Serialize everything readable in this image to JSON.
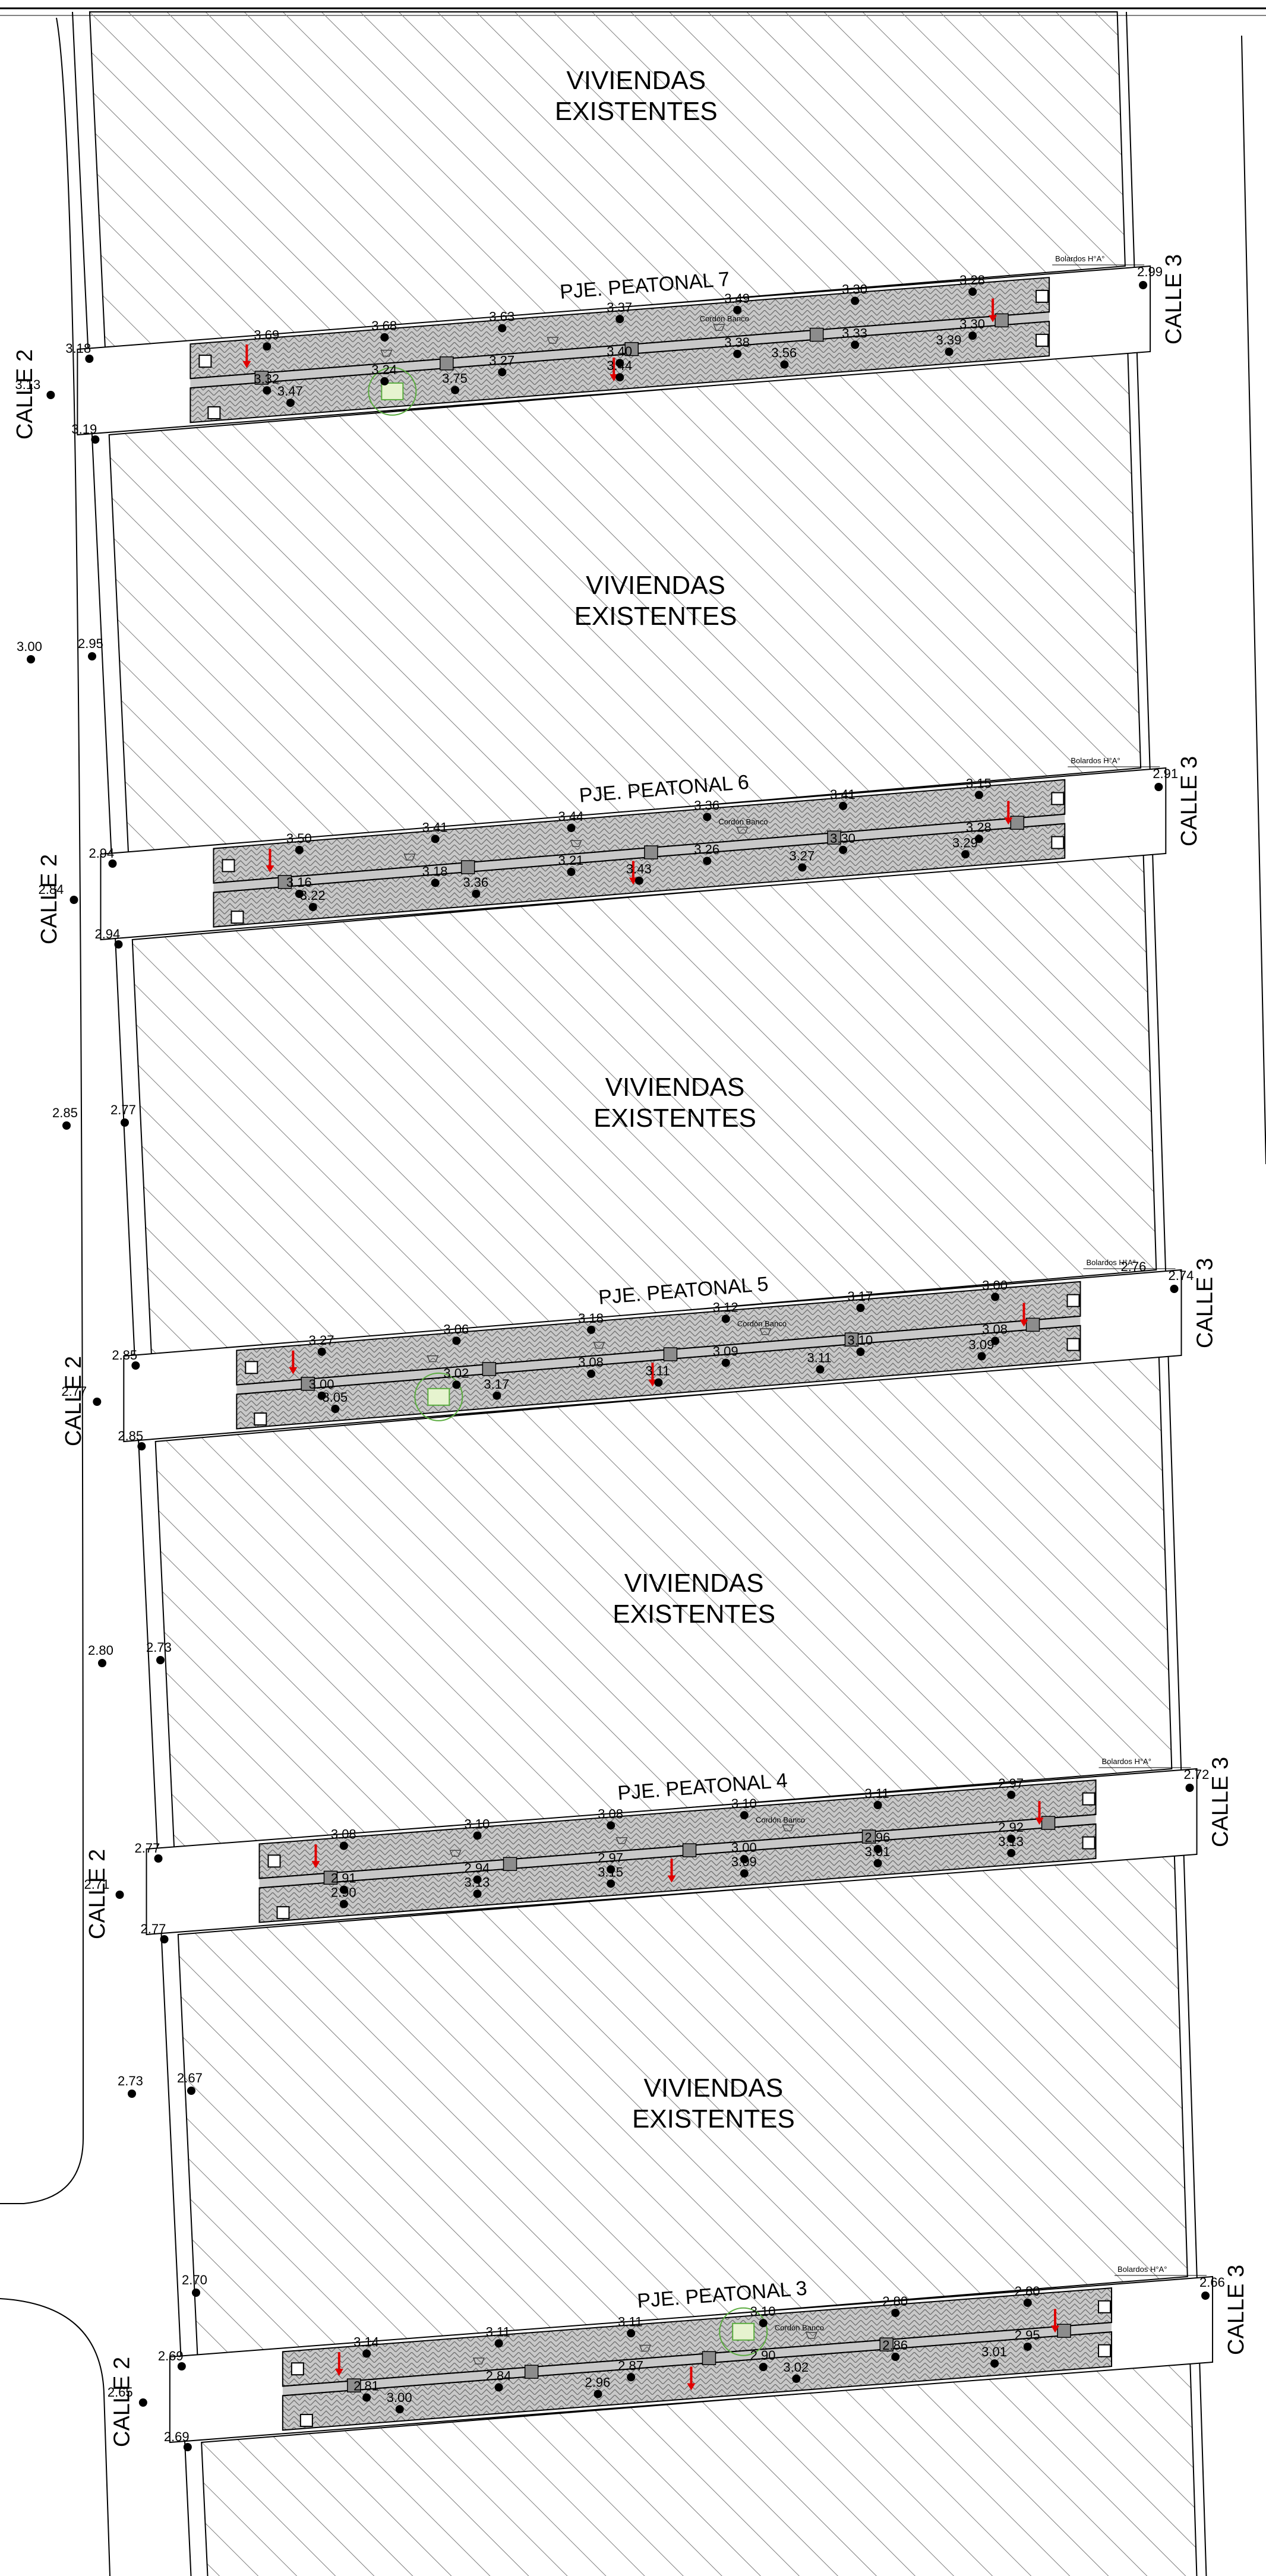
{
  "colors": {
    "line": "#000000",
    "hatch": "#8a8a8a",
    "paving": "#c8c8c8",
    "arrow": "#e00000",
    "tree": "#5aab3f",
    "tree_fill": "#e6f3cf",
    "bench": "#8c8c8c"
  },
  "icons": [
    "spot-level-dot",
    "bollard-square",
    "bench-rect",
    "grate-symbol",
    "slope-arrow",
    "tree-circle"
  ],
  "blocks": [
    {
      "label_line1": "VIVIENDAS",
      "label_line2": "EXISTENTES"
    },
    {
      "label_line1": "VIVIENDAS",
      "label_line2": "EXISTENTES"
    },
    {
      "label_line1": "VIVIENDAS",
      "label_line2": "EXISTENTES"
    },
    {
      "label_line1": "VIVIENDAS",
      "label_line2": "EXISTENTES"
    },
    {
      "label_line1": "VIVIENDAS",
      "label_line2": "EXISTENTES"
    }
  ],
  "streets": {
    "west": {
      "label": "CALLE 2",
      "repeats": 5
    },
    "east": {
      "label": "CALLE 3",
      "repeats": 5
    }
  },
  "passages": [
    {
      "name": "PJE. PEATONAL 7",
      "bollard_note": "Bolardos H°A°",
      "bench_note": "Cordón Banco",
      "west_levels": [
        "3.18",
        "3.13",
        "3.19"
      ],
      "east_level": "2.99",
      "spot_levels": [
        "3.69",
        "3.68",
        "3.63",
        "3.37",
        "3.49",
        "3.30",
        "3.28",
        "3.32",
        "3.24",
        "3.27",
        "3.40",
        "3.38",
        "3.33",
        "3.30",
        "3.47",
        "3.75",
        "3.44",
        "3.56",
        "3.39"
      ]
    },
    {
      "name": "PJE. PEATONAL 6",
      "bollard_note": "Bolardos H°A°",
      "bench_note": "Cordón Banco",
      "west_levels": [
        "2.94",
        "2.84",
        "2.94"
      ],
      "east_level": "2.91",
      "spot_levels": [
        "3.50",
        "3.41",
        "3.44",
        "3.36",
        "3.41",
        "3.15",
        "3.16",
        "3.18",
        "3.21",
        "3.26",
        "3.30",
        "3.28",
        "3.22",
        "3.36",
        "3.43",
        "3.27",
        "3.29"
      ]
    },
    {
      "name": "PJE. PEATONAL 5",
      "bollard_note": "Bolardos H°A°",
      "bench_note": "Cordón Banco",
      "west_levels": [
        "2.85",
        "2.77",
        "2.85"
      ],
      "east_level": "2.74",
      "east_level_2": "2.76",
      "spot_levels": [
        "3.27",
        "3.06",
        "3.18",
        "3.12",
        "3.17",
        "3.00",
        "3.00",
        "3.02",
        "3.08",
        "3.09",
        "3.10",
        "3.08",
        "3.05",
        "3.17",
        "3.11",
        "3.11",
        "3.09"
      ]
    },
    {
      "name": "PJE. PEATONAL 4",
      "bollard_note": "Bolardos H°A°",
      "bench_note": "Cordón Banco",
      "west_levels": [
        "2.77",
        "2.71",
        "2.77"
      ],
      "east_level": "2.72",
      "spot_levels": [
        "3.08",
        "3.10",
        "3.08",
        "3.10",
        "3.11",
        "2.97",
        "2.91",
        "2.94",
        "2.97",
        "3.00",
        "2.96",
        "2.92",
        "2.90",
        "3.13",
        "3.15",
        "3.09",
        "3.01",
        "3.13"
      ]
    },
    {
      "name": "PJE. PEATONAL 3",
      "bollard_note": "Bolardos H°A°",
      "bench_note": "Cordón Banco",
      "west_levels": [
        "2.69",
        "2.65",
        "2.69"
      ],
      "east_level": "2.66",
      "spot_levels": [
        "3.14",
        "3.11",
        "3.11",
        "3.10",
        "2.80",
        "2.80",
        "2.81",
        "2.84",
        "2.87",
        "2.90",
        "2.86",
        "2.95",
        "3.00",
        "2.96",
        "3.02",
        "3.01"
      ]
    }
  ],
  "free_levels": [
    "3.00",
    "2.95",
    "2.85",
    "2.77",
    "2.80",
    "2.73",
    "2.73",
    "2.67",
    "2.70"
  ]
}
